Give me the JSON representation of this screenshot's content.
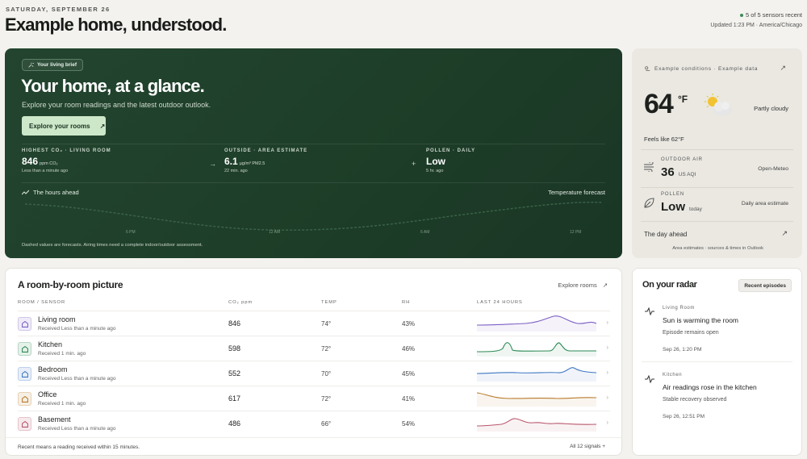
{
  "header": {
    "date": "SATURDAY, SEPTEMBER 26",
    "title": "Example home, understood.",
    "sensors": "5 of 5 sensors recent",
    "updated": "Updated 1:23 PM · America/Chicago"
  },
  "hero": {
    "pill": "Your living brief",
    "title": "Your home, at a glance.",
    "subtitle": "Explore your room readings and the latest outdoor outlook.",
    "button": "Explore your rooms",
    "stats": [
      {
        "label": "HIGHEST CO₂ · LIVING ROOM",
        "value": "846",
        "unit": "ppm CO₂",
        "ago": "Less than a minute ago"
      },
      {
        "label": "OUTSIDE · AREA ESTIMATE",
        "value": "6.1",
        "unit": "µg/m³ PM2.5",
        "ago": "22 min. ago"
      },
      {
        "label": "POLLEN · DAILY",
        "value": "Low",
        "unit": "",
        "ago": "5 hr. ago"
      }
    ],
    "hours_ahead": "The hours ahead",
    "forecast": "Temperature forecast",
    "ticks": [
      "6 PM",
      "12 AM",
      "6 AM",
      "12 PM"
    ],
    "footnote": "Dashed values are forecasts. Airing times need a complete indoor/outdoor assessment."
  },
  "weather": {
    "header": "Example conditions · Example data",
    "temp": "64",
    "unit": "°F",
    "condition": "Partly cloudy",
    "feels": "Feels like 62°F",
    "outdoor_label": "OUTDOOR AIR",
    "outdoor_value": "36",
    "outdoor_unit": "US AQI",
    "outdoor_source": "Open-Meteo",
    "pollen_label": "POLLEN",
    "pollen_value": "Low",
    "pollen_unit": "today",
    "pollen_source": "Daily area estimate",
    "day_ahead": "The day ahead",
    "area_note": "Area estimates · sources & times in Outlook"
  },
  "rooms": {
    "title": "A room-by-room picture",
    "explore": "Explore rooms",
    "columns": {
      "room": "ROOM / SENSOR",
      "co2": "CO₂ ppm",
      "temp": "TEMP",
      "rh": "RH",
      "last": "LAST 24 HOURS"
    },
    "list": [
      {
        "name": "Living room",
        "received": "Received Less than a minute ago",
        "co2": "846",
        "temp": "74°",
        "rh": "43%",
        "color": "#7b5fc4"
      },
      {
        "name": "Kitchen",
        "received": "Received 1 min. ago",
        "co2": "598",
        "temp": "72°",
        "rh": "46%",
        "color": "#2e8a55"
      },
      {
        "name": "Bedroom",
        "received": "Received Less than a minute ago",
        "co2": "552",
        "temp": "70°",
        "rh": "45%",
        "color": "#3f77c2"
      },
      {
        "name": "Office",
        "received": "Received 1 min. ago",
        "co2": "617",
        "temp": "72°",
        "rh": "41%",
        "color": "#b87a2a"
      },
      {
        "name": "Basement",
        "received": "Received Less than a minute ago",
        "co2": "486",
        "temp": "66°",
        "rh": "54%",
        "color": "#b8566c"
      }
    ],
    "footnote": "Recent means a reading received within 15 minutes.",
    "signals": "All 12 signals"
  },
  "radar": {
    "title": "On your radar",
    "button": "Recent episodes",
    "episodes": [
      {
        "room": "Living Room",
        "title": "Sun is warming the room",
        "desc": "Episode remains open",
        "time": "Sep 26, 1:20 PM"
      },
      {
        "room": "Kitchen",
        "title": "Air readings rose in the kitchen",
        "desc": "Stable recovery observed",
        "time": "Sep 26, 12:51 PM"
      }
    ]
  }
}
